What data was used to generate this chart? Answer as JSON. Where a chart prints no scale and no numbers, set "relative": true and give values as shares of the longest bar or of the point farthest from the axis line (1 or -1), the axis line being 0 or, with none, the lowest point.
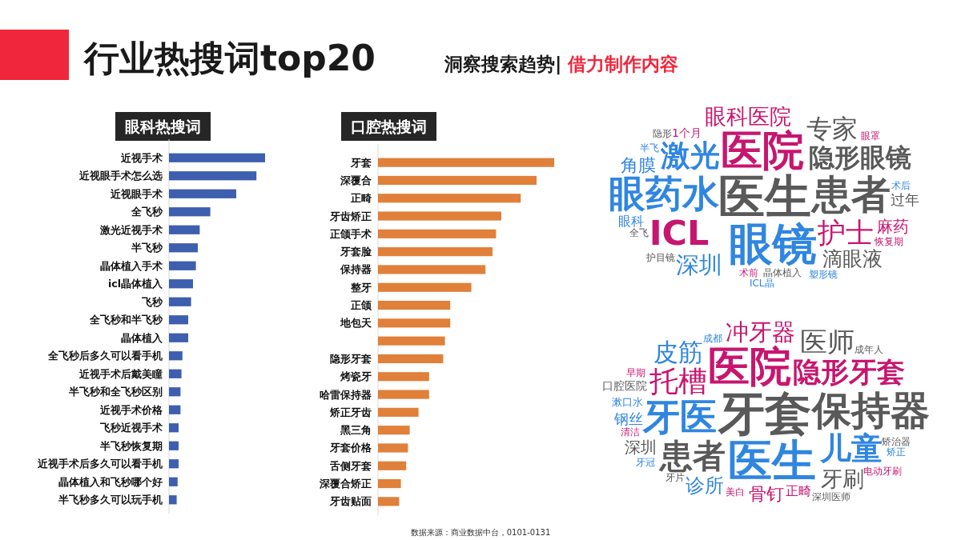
{
  "chart_data": [
    {
      "type": "bar",
      "orientation": "horizontal",
      "relative": true,
      "title": "眼科热搜词",
      "color": "#3d5fae",
      "annotations": [
        "行业热搜词top20",
        "洞察搜索趋势|",
        "借力制作内容"
      ],
      "categories": [
        "近视手术",
        "近视眼手术怎么选",
        "近视眼手术",
        "全飞秒",
        "激光近视手术",
        "半飞秒",
        "晶体植入手术",
        "icl晶体植入",
        "飞秒",
        "全飞秒和半飞秒",
        "晶体植入",
        "全飞秒后多久可以看手机",
        "近视手术后戴美瞳",
        "半飞秒和全飞秒区别",
        "近视手术价格",
        "飞秒近视手术",
        "半飞秒恢复期",
        "近视手术后多久可以看手机",
        "晶体植入和飞秒哪个好",
        "半飞秒多久可以玩手机"
      ],
      "values": [
        1,
        0.91,
        0.7,
        0.43,
        0.32,
        0.3,
        0.28,
        0.25,
        0.23,
        0.2,
        0.2,
        0.14,
        0.13,
        0.12,
        0.12,
        0.1,
        0.1,
        0.1,
        0.09,
        0.08
      ]
    },
    {
      "type": "bar",
      "orientation": "horizontal",
      "relative": true,
      "title": "口腔热搜词",
      "color": "#e0803a",
      "annotations": [
        "数据来源：商业数据中台，0101-0131"
      ],
      "categories": [
        "牙套",
        "深覆合",
        "正畸",
        "牙齿矫正",
        "正颌手术",
        "牙套脸",
        "保持器",
        "整牙",
        "正颌",
        "地包天",
        null,
        "隐形牙套",
        "烤瓷牙",
        "哈雷保持器",
        "矫正牙齿",
        "黑三角",
        "牙套价格",
        "舌侧牙套",
        "深覆合矫正",
        "牙齿贴面"
      ],
      "values": [
        1,
        0.9,
        0.81,
        0.7,
        0.67,
        0.65,
        0.61,
        0.53,
        0.41,
        0.41,
        0.38,
        0.37,
        0.29,
        0.29,
        0.23,
        0.18,
        0.17,
        0.16,
        0.13,
        0.12
      ]
    },
    {
      "type": "other",
      "annotations": [
        "医生",
        "眼镜",
        "医院",
        "患者",
        "眼药水",
        "ICL",
        "隐形眼镜",
        "激光",
        "护士",
        "专家",
        "深圳",
        "眼科医院",
        "滴眼液",
        "角膜",
        "麻药",
        "过年",
        "眼科",
        "1个月",
        "晶体植入",
        "术后",
        "术前",
        "全飞",
        "半飞",
        "恢复期",
        "护目镜",
        "塑形镜",
        "眼罩",
        "隐形",
        "ICL晶"
      ]
    },
    {
      "type": "other",
      "annotations": [
        "牙套",
        "医生",
        "医院",
        "保持器",
        "牙医",
        "隐形牙套",
        "患者",
        "儿童",
        "托槽",
        "医师",
        "皮筋",
        "冲牙器",
        "牙刷",
        "诊所",
        "骨钉",
        "深圳",
        "钢丝",
        "正畸",
        "口腔医院",
        "漱口水",
        "美白",
        "矫治器",
        "成都",
        "清洁",
        "牙片",
        "牙冠",
        "早期",
        "成年人",
        "矫正",
        "电动牙刷",
        "深圳医师"
      ]
    }
  ]
}
